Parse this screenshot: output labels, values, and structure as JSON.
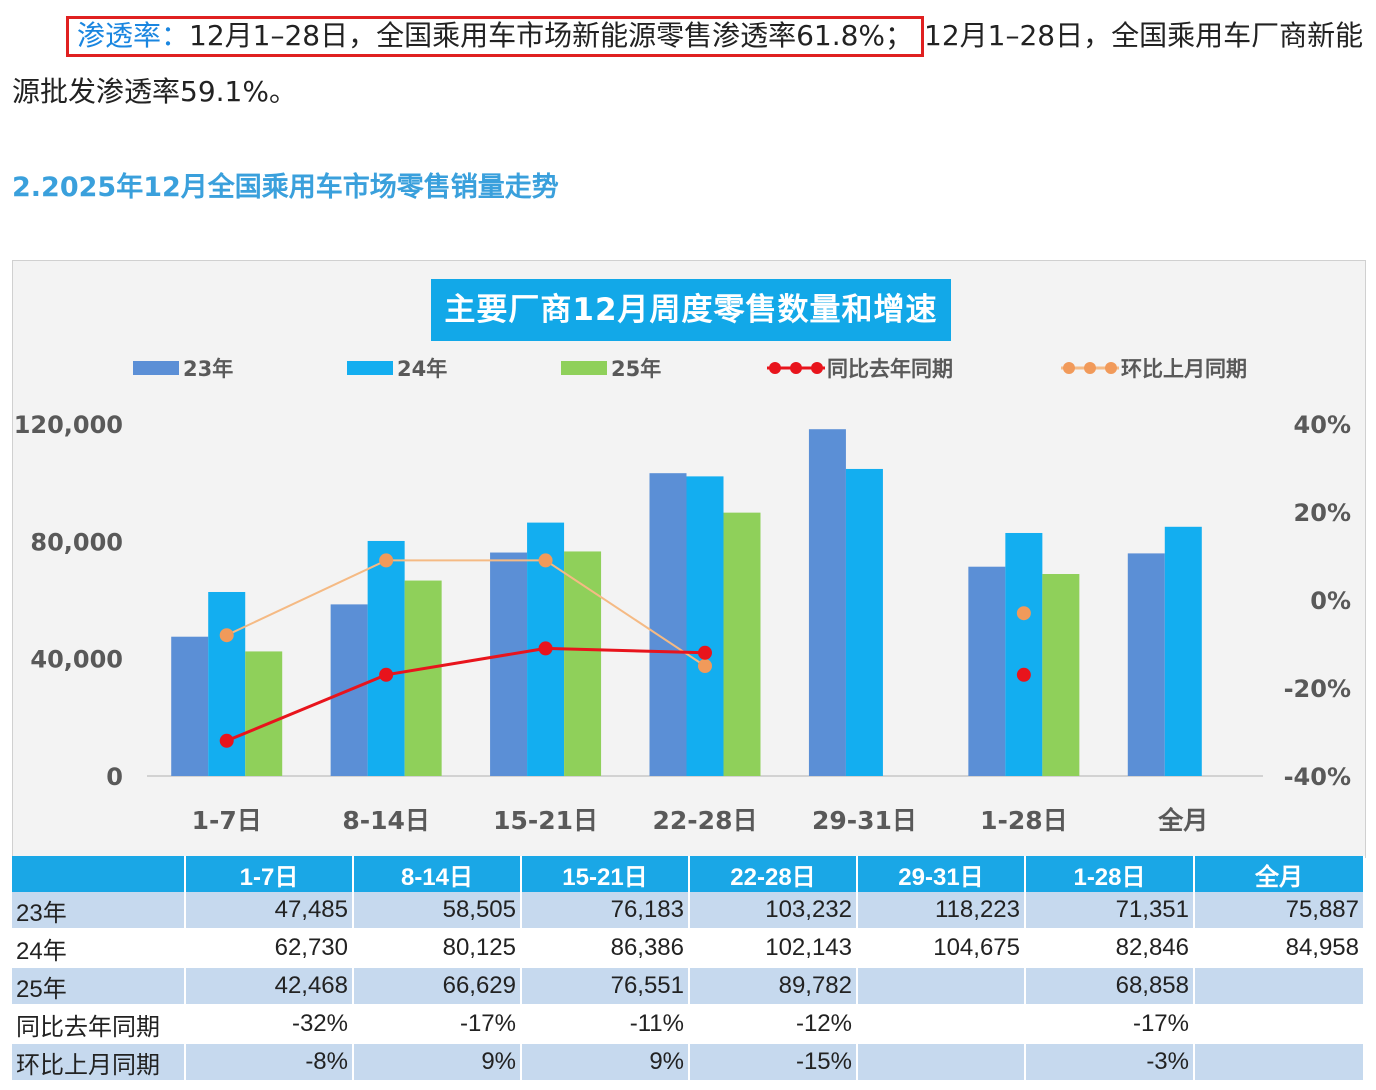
{
  "article": {
    "label": "渗透率：",
    "highlighted": "12月1–28日，全国乘用车市场新能源零售渗透率61.8%；",
    "continuation": "12月1–28日，全国乘用车厂商新能源批发渗透率59.1%。",
    "section_title": "2.2025年12月全国乘用车市场零售销量走势"
  },
  "colors": {
    "s23": "#5b8fd6",
    "s24": "#13aef0",
    "s25": "#8fd05a",
    "yoy": "#e8141c",
    "mom": "#f5ba84",
    "mom_dot": "#f19a5a",
    "title_bg": "#12a8e8",
    "table_header": "#1aa7e6",
    "table_row_alt": "#c6d9ee"
  },
  "chart_data": {
    "type": "bar",
    "title": "主要厂商12月周度零售数量和增速",
    "categories": [
      "1-7日",
      "8-14日",
      "15-21日",
      "22-28日",
      "29-31日",
      "1-28日",
      "全月"
    ],
    "series": [
      {
        "name": "23年",
        "values": [
          47485,
          58505,
          76183,
          103232,
          118223,
          71351,
          75887
        ]
      },
      {
        "name": "24年",
        "values": [
          62730,
          80125,
          86386,
          102143,
          104675,
          82846,
          84958
        ]
      },
      {
        "name": "25年",
        "values": [
          42468,
          66629,
          76551,
          89782,
          null,
          68858,
          null
        ]
      }
    ],
    "line_series": [
      {
        "name": "同比去年同期",
        "axis": "right",
        "values": [
          -32,
          -17,
          -11,
          -12,
          null,
          -17,
          null
        ]
      },
      {
        "name": "环比上月同期",
        "axis": "right",
        "values": [
          -8,
          9,
          9,
          -15,
          null,
          -3,
          null
        ]
      }
    ],
    "left_axis": {
      "ylim": [
        0,
        120000
      ],
      "ticks": [
        "0",
        "40,000",
        "80,000",
        "120,000"
      ]
    },
    "right_axis": {
      "ylim": [
        -40,
        40
      ],
      "ticks": [
        "-40%",
        "-20%",
        "0%",
        "20%",
        "40%"
      ]
    },
    "legend_position": "top",
    "grid": false
  },
  "table": {
    "headers": [
      "",
      "1-7日",
      "8-14日",
      "15-21日",
      "22-28日",
      "29-31日",
      "1-28日",
      "全月"
    ],
    "rows": [
      [
        "23年",
        "47,485",
        "58,505",
        "76,183",
        "103,232",
        "118,223",
        "71,351",
        "75,887"
      ],
      [
        "24年",
        "62,730",
        "80,125",
        "86,386",
        "102,143",
        "104,675",
        "82,846",
        "84,958"
      ],
      [
        "25年",
        "42,468",
        "66,629",
        "76,551",
        "89,782",
        "",
        "68,858",
        ""
      ],
      [
        "同比去年同期",
        "-32%",
        "-17%",
        "-11%",
        "-12%",
        "",
        "-17%",
        ""
      ],
      [
        "环比上月同期",
        "-8%",
        "9%",
        "9%",
        "-15%",
        "",
        "-3%",
        ""
      ]
    ]
  }
}
